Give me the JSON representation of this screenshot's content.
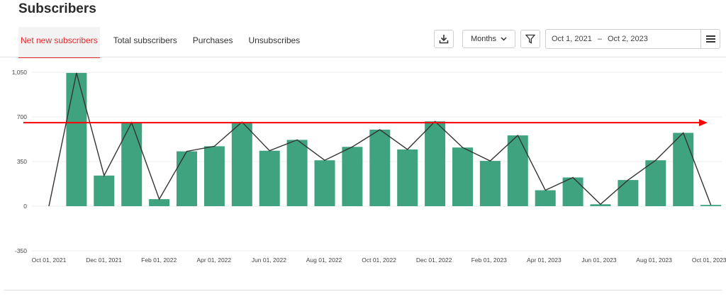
{
  "header": {
    "title": "Subscribers"
  },
  "tabs": [
    {
      "label": "Net new subscribers",
      "active": true
    },
    {
      "label": "Total subscribers",
      "active": false
    },
    {
      "label": "Purchases",
      "active": false
    },
    {
      "label": "Unsubscribes",
      "active": false
    }
  ],
  "toolbar": {
    "download_icon": "download-icon",
    "period_select": "Months",
    "filter_icon": "filter-icon",
    "date_from": "Oct 1, 2021",
    "date_sep": "–",
    "date_to": "Oct 2, 2023",
    "menu_icon": "hamburger-icon"
  },
  "colors": {
    "bar": "#3fa37f",
    "line": "#333333",
    "target": "#ff0000",
    "active_tab": "#e2292e"
  },
  "chart_data": {
    "type": "bar",
    "yticks": [
      "1,050",
      "700",
      "350",
      "0",
      "-350"
    ],
    "ylim": [
      -350,
      1050
    ],
    "xticks": [
      "Oct 01, 2021",
      "Dec 01, 2021",
      "Feb 01, 2022",
      "Apr 01, 2022",
      "Jun 01, 2022",
      "Aug 01, 2022",
      "Oct 01, 2022",
      "Dec 01, 2022",
      "Feb 01, 2023",
      "Apr 01, 2023",
      "Jun 01, 2023",
      "Aug 01, 2023",
      "Oct 01, 2023"
    ],
    "values": [
      0,
      1045,
      240,
      655,
      55,
      430,
      470,
      660,
      435,
      520,
      360,
      465,
      600,
      445,
      665,
      460,
      355,
      555,
      125,
      225,
      15,
      205,
      360,
      575,
      10
    ],
    "reference_line": 655,
    "grid": true,
    "series": [
      {
        "type": "bar"
      },
      {
        "type": "line"
      }
    ]
  }
}
